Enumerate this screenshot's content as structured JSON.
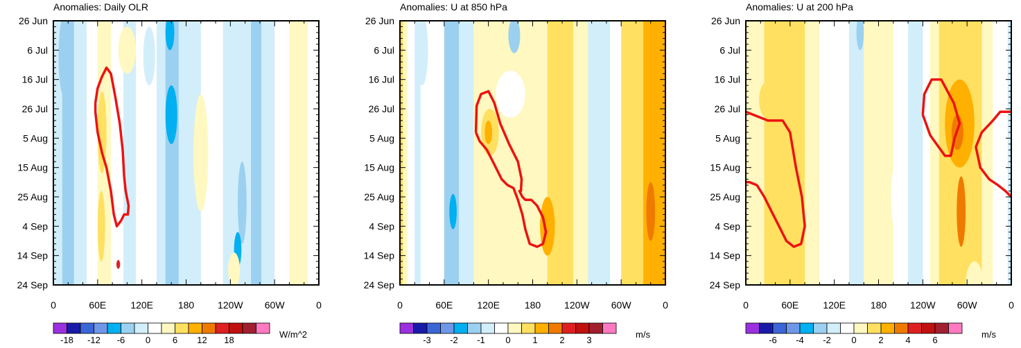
{
  "chart_data": [
    {
      "type": "heatmap",
      "title": "Anomalies: Daily OLR",
      "units": "W/m^2",
      "x_range": [
        0,
        360
      ],
      "x_ticks": [
        {
          "lon": 0,
          "label": "0"
        },
        {
          "lon": 60,
          "label": "60E"
        },
        {
          "lon": 120,
          "label": "120E"
        },
        {
          "lon": 180,
          "label": "180"
        },
        {
          "lon": 240,
          "label": "120W"
        },
        {
          "lon": 300,
          "label": "60W"
        },
        {
          "lon": 360,
          "label": "0"
        }
      ],
      "y_ticks": [
        "26 Jun",
        "6 Jul",
        "16 Jul",
        "26 Jul",
        "5 Aug",
        "15 Aug",
        "25 Aug",
        "4 Sep",
        "14 Sep",
        "24 Sep"
      ],
      "colorbar_labels": [
        "-18",
        "-12",
        "-6",
        "0",
        "6",
        "12",
        "18"
      ],
      "colorbar_label_positions": [
        1,
        3,
        5,
        7,
        9,
        11,
        13
      ],
      "colorbar_colors": [
        "#9b30e0",
        "#1a1aa8",
        "#3b66d6",
        "#6f97e8",
        "#00b0f0",
        "#9cd0f0",
        "#d2eefa",
        "#ffffff",
        "#fff8c0",
        "#ffe060",
        "#ffb000",
        "#f07a00",
        "#e02020",
        "#c01010",
        "#a02030",
        "#ff7ac0"
      ],
      "bands": [
        {
          "x0": 0,
          "x1": 12,
          "level": -1
        },
        {
          "x0": 12,
          "x1": 28,
          "level": -2
        },
        {
          "x0": 28,
          "x1": 45,
          "level": -1
        },
        {
          "x0": 45,
          "x1": 60,
          "level": 0
        },
        {
          "x0": 60,
          "x1": 78,
          "level": 1
        },
        {
          "x0": 78,
          "x1": 95,
          "level": 0
        },
        {
          "x0": 95,
          "x1": 112,
          "level": -1
        },
        {
          "x0": 112,
          "x1": 140,
          "level": 0
        },
        {
          "x0": 140,
          "x1": 152,
          "level": -1
        },
        {
          "x0": 152,
          "x1": 170,
          "level": -2
        },
        {
          "x0": 170,
          "x1": 200,
          "level": -1
        },
        {
          "x0": 200,
          "x1": 230,
          "level": 0
        },
        {
          "x0": 230,
          "x1": 268,
          "level": -1
        },
        {
          "x0": 268,
          "x1": 282,
          "level": -2
        },
        {
          "x0": 282,
          "x1": 300,
          "level": -1
        },
        {
          "x0": 300,
          "x1": 320,
          "level": 0
        },
        {
          "x0": 320,
          "x1": 345,
          "level": 1
        },
        {
          "x0": 345,
          "x1": 360,
          "level": 0
        }
      ],
      "blobs": [
        {
          "lon": 15,
          "day": 12,
          "rx": 8,
          "ry": 14,
          "level": -2
        },
        {
          "lon": 66,
          "day": 38,
          "rx": 6,
          "ry": 14,
          "level": 2
        },
        {
          "lon": 65,
          "day": 70,
          "rx": 5,
          "ry": 12,
          "level": 2
        },
        {
          "lon": 100,
          "day": 10,
          "rx": 12,
          "ry": 8,
          "level": 1
        },
        {
          "lon": 130,
          "day": 12,
          "rx": 8,
          "ry": 10,
          "level": -1
        },
        {
          "lon": 158,
          "day": 4,
          "rx": 6,
          "ry": 6,
          "level": -3
        },
        {
          "lon": 160,
          "day": 32,
          "rx": 8,
          "ry": 10,
          "level": -3
        },
        {
          "lon": 200,
          "day": 45,
          "rx": 10,
          "ry": 20,
          "level": 1
        },
        {
          "lon": 256,
          "day": 62,
          "rx": 6,
          "ry": 14,
          "level": -2
        },
        {
          "lon": 250,
          "day": 78,
          "rx": 5,
          "ry": 6,
          "level": -3
        },
        {
          "lon": 245,
          "day": 85,
          "rx": 8,
          "ry": 6,
          "level": 1
        },
        {
          "lon": 88,
          "day": 83,
          "rx": 2.5,
          "ry": 1.5,
          "level": 5
        }
      ],
      "contours": [
        [
          [
            57,
            28
          ],
          [
            60,
            23
          ],
          [
            66,
            19
          ],
          [
            72,
            16
          ],
          [
            78,
            18
          ],
          [
            84,
            26
          ],
          [
            90,
            35
          ],
          [
            94,
            44
          ],
          [
            96,
            53
          ],
          [
            98,
            58
          ],
          [
            102,
            63
          ],
          [
            101,
            66
          ],
          [
            96,
            66
          ],
          [
            92,
            68
          ],
          [
            86,
            70
          ],
          [
            82,
            66
          ],
          [
            78,
            58
          ],
          [
            72,
            50
          ],
          [
            66,
            45
          ],
          [
            60,
            38
          ],
          [
            57,
            31
          ],
          [
            57,
            28
          ]
        ]
      ]
    },
    {
      "type": "heatmap",
      "title": "Anomalies: U at 850 hPa",
      "units": "m/s",
      "x_range": [
        0,
        360
      ],
      "x_ticks": [
        {
          "lon": 0,
          "label": "0"
        },
        {
          "lon": 60,
          "label": "60E"
        },
        {
          "lon": 120,
          "label": "120E"
        },
        {
          "lon": 180,
          "label": "180"
        },
        {
          "lon": 240,
          "label": "120W"
        },
        {
          "lon": 300,
          "label": "60W"
        },
        {
          "lon": 360,
          "label": "0"
        }
      ],
      "y_ticks": [
        "26 Jun",
        "6 Jul",
        "16 Jul",
        "26 Jul",
        "5 Aug",
        "15 Aug",
        "25 Aug",
        "4 Sep",
        "14 Sep",
        "24 Sep"
      ],
      "colorbar_labels": [
        "-3",
        "-2",
        "-1",
        "0",
        "1",
        "2",
        "3"
      ],
      "colorbar_label_positions": [
        2,
        4,
        6,
        8,
        10,
        12,
        14
      ],
      "colorbar_colors": [
        "#9b30e0",
        "#1a1aa8",
        "#3b66d6",
        "#6f97e8",
        "#00b0f0",
        "#9cd0f0",
        "#d2eefa",
        "#ffffff",
        "#fff8c0",
        "#ffe060",
        "#ffb000",
        "#f07a00",
        "#e02020",
        "#c01010",
        "#a02030",
        "#ff7ac0"
      ],
      "bands": [
        {
          "x0": 0,
          "x1": 4,
          "level": 2
        },
        {
          "x0": 4,
          "x1": 10,
          "level": 1
        },
        {
          "x0": 10,
          "x1": 20,
          "level": 0
        },
        {
          "x0": 20,
          "x1": 28,
          "level": -1
        },
        {
          "x0": 28,
          "x1": 60,
          "level": 0
        },
        {
          "x0": 60,
          "x1": 80,
          "level": -2
        },
        {
          "x0": 80,
          "x1": 100,
          "level": -1
        },
        {
          "x0": 100,
          "x1": 180,
          "level": 1
        },
        {
          "x0": 180,
          "x1": 200,
          "level": 1
        },
        {
          "x0": 200,
          "x1": 235,
          "level": 2
        },
        {
          "x0": 235,
          "x1": 255,
          "level": 1
        },
        {
          "x0": 255,
          "x1": 285,
          "level": -1
        },
        {
          "x0": 285,
          "x1": 300,
          "level": 0
        },
        {
          "x0": 300,
          "x1": 330,
          "level": 2
        },
        {
          "x0": 330,
          "x1": 360,
          "level": 3
        }
      ],
      "blobs": [
        {
          "lon": 30,
          "day": 10,
          "rx": 8,
          "ry": 12,
          "level": -1
        },
        {
          "lon": 72,
          "day": 65,
          "rx": 5,
          "ry": 6,
          "level": -3
        },
        {
          "lon": 122,
          "day": 38,
          "rx": 12,
          "ry": 8,
          "level": 2
        },
        {
          "lon": 120,
          "day": 38,
          "rx": 5,
          "ry": 4,
          "level": 3
        },
        {
          "lon": 155,
          "day": 5,
          "rx": 8,
          "ry": 6,
          "level": -2
        },
        {
          "lon": 150,
          "day": 25,
          "rx": 20,
          "ry": 8,
          "level": 0
        },
        {
          "lon": 200,
          "day": 70,
          "rx": 10,
          "ry": 10,
          "level": 3
        },
        {
          "lon": 340,
          "day": 65,
          "rx": 6,
          "ry": 10,
          "level": 4
        }
      ],
      "contours": [
        [
          [
            103,
            38
          ],
          [
            104,
            29
          ],
          [
            110,
            25
          ],
          [
            120,
            24
          ],
          [
            128,
            28
          ],
          [
            136,
            35
          ],
          [
            148,
            42
          ],
          [
            160,
            48
          ],
          [
            165,
            54
          ],
          [
            164,
            58
          ],
          [
            162,
            58
          ],
          [
            166,
            60
          ],
          [
            170,
            61
          ],
          [
            178,
            61
          ],
          [
            186,
            63
          ],
          [
            194,
            67
          ],
          [
            198,
            72
          ],
          [
            194,
            76
          ],
          [
            186,
            77
          ],
          [
            176,
            76
          ],
          [
            170,
            71
          ],
          [
            166,
            66
          ],
          [
            160,
            61
          ],
          [
            154,
            57
          ],
          [
            146,
            56
          ],
          [
            138,
            54
          ],
          [
            128,
            49
          ],
          [
            118,
            44
          ],
          [
            108,
            41
          ],
          [
            103,
            38
          ]
        ]
      ]
    },
    {
      "type": "heatmap",
      "title": "Anomalies: U at 200 hPa",
      "units": "m/s",
      "x_range": [
        0,
        360
      ],
      "x_ticks": [
        {
          "lon": 0,
          "label": "0"
        },
        {
          "lon": 60,
          "label": "60E"
        },
        {
          "lon": 120,
          "label": "120E"
        },
        {
          "lon": 180,
          "label": "180"
        },
        {
          "lon": 240,
          "label": "120W"
        },
        {
          "lon": 300,
          "label": "60W"
        },
        {
          "lon": 360,
          "label": "0"
        }
      ],
      "y_ticks": [
        "26 Jun",
        "6 Jul",
        "16 Jul",
        "26 Jul",
        "5 Aug",
        "15 Aug",
        "25 Aug",
        "4 Sep",
        "14 Sep",
        "24 Sep"
      ],
      "colorbar_labels": [
        "-6",
        "-4",
        "-2",
        "0",
        "2",
        "4",
        "6"
      ],
      "colorbar_label_positions": [
        2,
        4,
        6,
        8,
        10,
        12,
        14
      ],
      "colorbar_colors": [
        "#9b30e0",
        "#1a1aa8",
        "#3b66d6",
        "#6f97e8",
        "#00b0f0",
        "#9cd0f0",
        "#d2eefa",
        "#ffffff",
        "#fff8c0",
        "#ffe060",
        "#ffb000",
        "#f07a00",
        "#e02020",
        "#c01010",
        "#a02030",
        "#ff7ac0"
      ],
      "bands": [
        {
          "x0": 0,
          "x1": 25,
          "level": 1
        },
        {
          "x0": 25,
          "x1": 80,
          "level": 2
        },
        {
          "x0": 80,
          "x1": 100,
          "level": 1
        },
        {
          "x0": 100,
          "x1": 140,
          "level": 0
        },
        {
          "x0": 140,
          "x1": 160,
          "level": -1
        },
        {
          "x0": 160,
          "x1": 200,
          "level": 1
        },
        {
          "x0": 200,
          "x1": 220,
          "level": 0
        },
        {
          "x0": 220,
          "x1": 240,
          "level": -1
        },
        {
          "x0": 240,
          "x1": 250,
          "level": 0
        },
        {
          "x0": 250,
          "x1": 262,
          "level": 1
        },
        {
          "x0": 262,
          "x1": 320,
          "level": 2
        },
        {
          "x0": 320,
          "x1": 335,
          "level": 1
        },
        {
          "x0": 335,
          "x1": 355,
          "level": 0
        },
        {
          "x0": 355,
          "x1": 360,
          "level": -1
        }
      ],
      "blobs": [
        {
          "lon": 28,
          "day": 27,
          "rx": 10,
          "ry": 6,
          "level": 2
        },
        {
          "lon": 55,
          "day": 50,
          "rx": 10,
          "ry": 15,
          "level": 2
        },
        {
          "lon": 155,
          "day": 4,
          "rx": 5,
          "ry": 6,
          "level": -2
        },
        {
          "lon": 152,
          "day": 18,
          "rx": 8,
          "ry": 8,
          "level": -1
        },
        {
          "lon": 205,
          "day": 60,
          "rx": 8,
          "ry": 12,
          "level": 0
        },
        {
          "lon": 290,
          "day": 35,
          "rx": 20,
          "ry": 15,
          "level": 3
        },
        {
          "lon": 287,
          "day": 38,
          "rx": 8,
          "ry": 6,
          "level": 4
        },
        {
          "lon": 292,
          "day": 65,
          "rx": 6,
          "ry": 12,
          "level": 4
        },
        {
          "lon": 310,
          "day": 90,
          "rx": 12,
          "ry": 8,
          "level": 1
        }
      ],
      "contours": [
        [
          [
            0,
            31
          ],
          [
            10,
            32
          ],
          [
            30,
            34
          ],
          [
            50,
            34
          ],
          [
            60,
            38
          ],
          [
            68,
            50
          ],
          [
            76,
            60
          ],
          [
            80,
            70
          ],
          [
            75,
            76
          ],
          [
            65,
            77
          ],
          [
            55,
            75
          ],
          [
            45,
            70
          ],
          [
            35,
            65
          ],
          [
            25,
            60
          ],
          [
            15,
            56
          ],
          [
            5,
            55
          ],
          [
            0,
            55
          ]
        ],
        [
          [
            240,
            32
          ],
          [
            242,
            25
          ],
          [
            252,
            20
          ],
          [
            265,
            20
          ],
          [
            282,
            28
          ],
          [
            290,
            35
          ],
          [
            283,
            40
          ],
          [
            278,
            46
          ],
          [
            270,
            46
          ],
          [
            250,
            39
          ],
          [
            240,
            32
          ]
        ],
        [
          [
            360,
            31
          ],
          [
            345,
            31
          ],
          [
            335,
            34
          ],
          [
            320,
            38
          ],
          [
            312,
            43
          ],
          [
            318,
            50
          ],
          [
            330,
            54
          ],
          [
            342,
            56
          ],
          [
            352,
            58
          ],
          [
            360,
            60
          ]
        ]
      ]
    }
  ]
}
